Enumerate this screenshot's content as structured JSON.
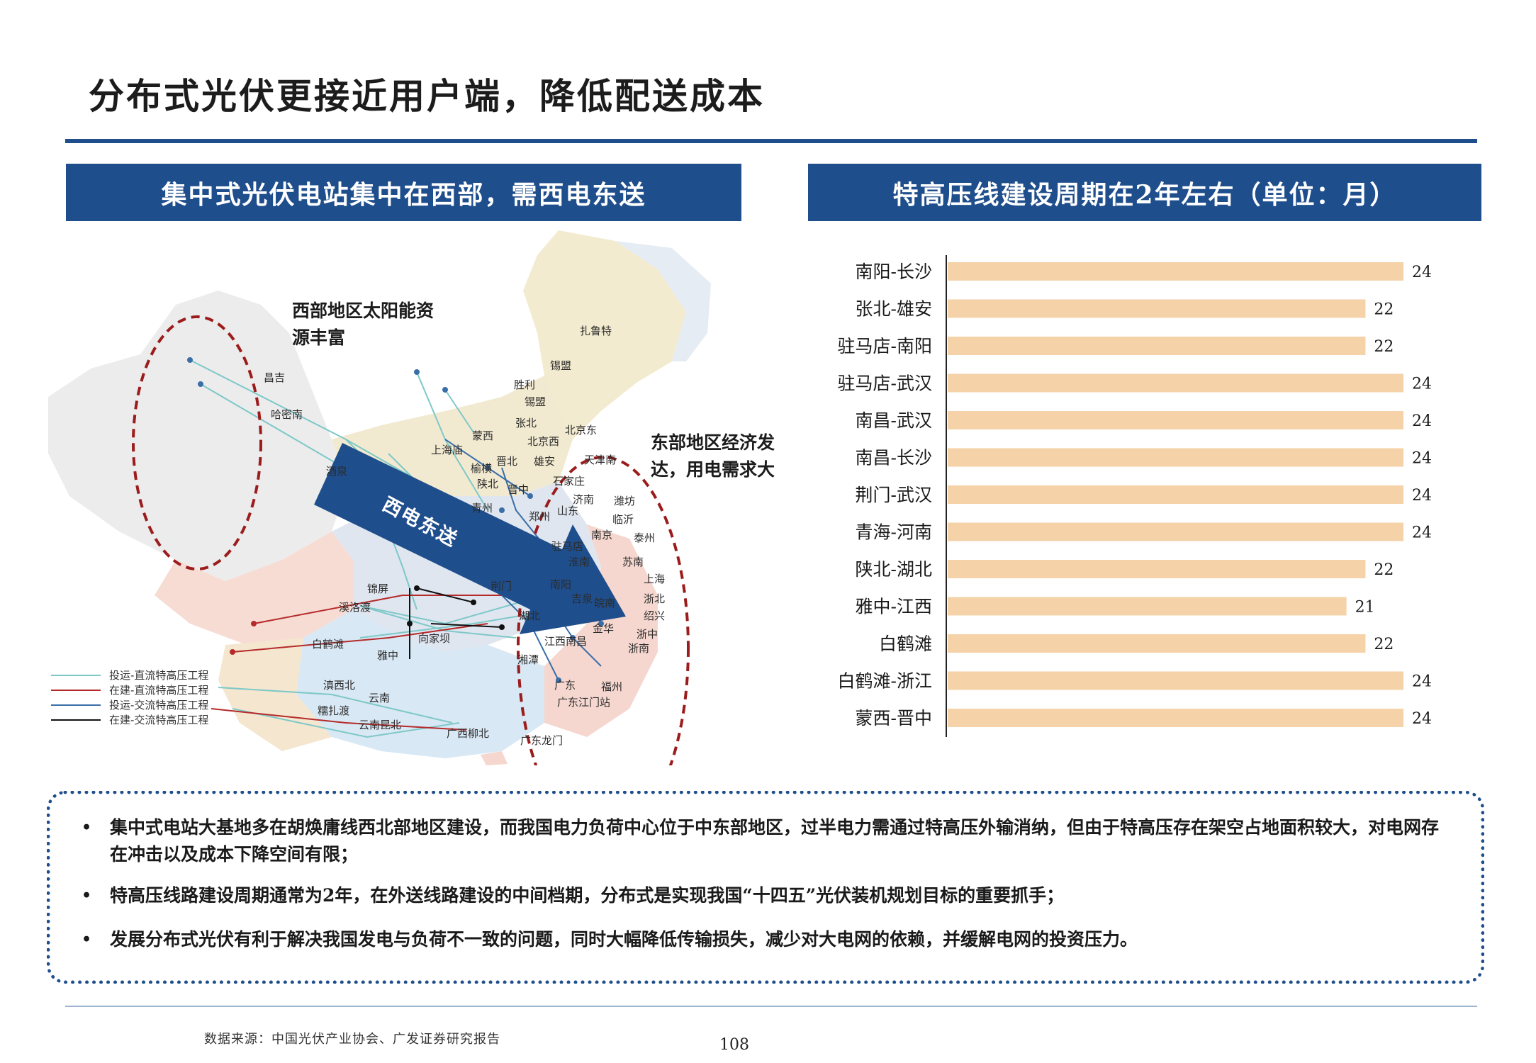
{
  "page_title": "分布式光伏更接近用户端，降低配送成本",
  "left_header": "集中式光伏电站集中在西部，需西电东送",
  "right_header": "特高压线建设周期在2年左右（单位：月）",
  "map": {
    "callout_west": "西部地区太阳能资源丰富",
    "callout_east": "东部地区经济发达，用电需求大",
    "arrow_label": "西电东送",
    "cities": [
      "扎鲁特",
      "锡盟",
      "胜利",
      "锡盟",
      "张北",
      "北京东",
      "北京西",
      "蒙西",
      "上海庙",
      "晋北",
      "雄安",
      "天津南",
      "榆横",
      "石家庄",
      "陕北",
      "晋中",
      "济南",
      "青州",
      "潍坊",
      "临沂",
      "郑州",
      "山东",
      "南京",
      "泰州",
      "驻马店",
      "淮南",
      "苏南",
      "上海",
      "荆门",
      "南阳",
      "浙北",
      "锦屏",
      "溪洛渡",
      "吉泉",
      "皖南",
      "绍兴",
      "湖北",
      "金华",
      "浙中",
      "向家坝",
      "白鹤滩",
      "江西南昌",
      "浙南",
      "雅中",
      "湘潭",
      "滇西北",
      "广东",
      "福州",
      "云南",
      "广东江门站",
      "糯扎渡",
      "云南昆北",
      "广西柳北",
      "广东龙门",
      "昌吉",
      "哈密南",
      "酒泉"
    ],
    "legend": [
      {
        "label": "投运-直流特高压工程",
        "color": "#7ec8c8"
      },
      {
        "label": "在建-直流特高压工程",
        "color": "#b52a2a"
      },
      {
        "label": "投运-交流特高压工程",
        "color": "#3a6ea8"
      },
      {
        "label": "在建-交流特高压工程",
        "color": "#111111"
      }
    ],
    "colors": {
      "arrow": "#1f4e8c",
      "dashed_ellipse": "#9b1c1c"
    }
  },
  "chart_data": {
    "type": "bar",
    "orientation": "horizontal",
    "categories": [
      "南阳-长沙",
      "张北-雄安",
      "驻马店-南阳",
      "驻马店-武汉",
      "南昌-武汉",
      "南昌-长沙",
      "荆门-武汉",
      "青海-河南",
      "陕北-湖北",
      "雅中-江西",
      "白鹤滩",
      "白鹤滩-浙江",
      "蒙西-晋中"
    ],
    "values": [
      24,
      22,
      22,
      24,
      24,
      24,
      24,
      24,
      22,
      21,
      22,
      24,
      24
    ],
    "xlim": [
      0,
      24
    ],
    "bar_color": "#f5d2a8",
    "grid": false
  },
  "bullets": [
    "集中式电站大基地多在胡焕庸线西北部地区建设，而我国电力负荷中心位于中东部地区，过半电力需通过特高压外输消纳，但由于特高压存在架空占地面积较大，对电网存在冲击以及成本下降空间有限；",
    "特高压线路建设周期通常为2年，在外送线路建设的中间档期，分布式是实现我国“十四五”光伏装机规划目标的重要抓手；",
    "发展分布式光伏有利于解决我国发电与负荷不一致的问题，同时大幅降低传输损失，减少对大电网的依赖，并缓解电网的投资压力。"
  ],
  "footer": {
    "source": "数据来源：中国光伏产业协会、广发证券研究报告",
    "page_number": "108"
  }
}
